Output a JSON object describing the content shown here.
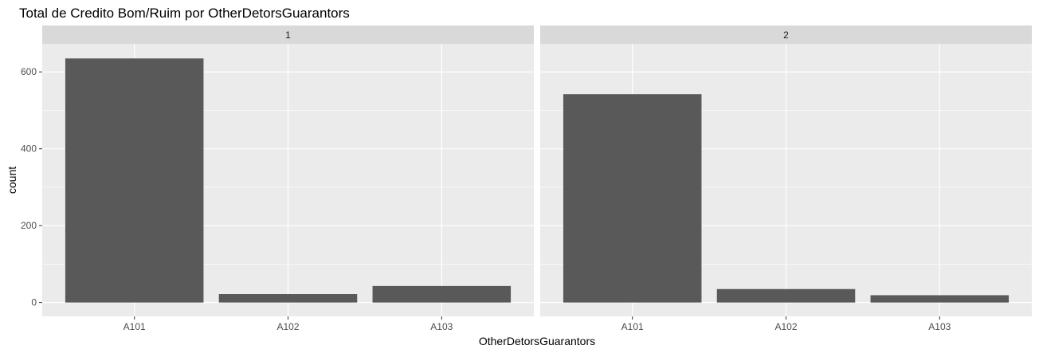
{
  "chart_data": {
    "type": "bar",
    "title": "Total de Credito Bom/Ruim por OtherDetorsGuarantors",
    "xlabel": "OtherDetorsGuarantors",
    "ylabel": "count",
    "ylim": [
      -36,
      673
    ],
    "y_ticks": [
      0,
      200,
      400,
      600
    ],
    "grid": true,
    "categories": [
      "A101",
      "A102",
      "A103"
    ],
    "facets": [
      {
        "label": "1",
        "values": [
          635,
          22,
          43
        ]
      },
      {
        "label": "2",
        "values": [
          542,
          35,
          19
        ]
      }
    ]
  },
  "style": {
    "panel_bg": "#EBEBEB",
    "strip_bg": "#D9D9D9",
    "bar_fill": "#595959",
    "grid_color": "#FFFFFF",
    "text_color": "#1A1A1A",
    "tick_text_color": "#4D4D4D"
  }
}
